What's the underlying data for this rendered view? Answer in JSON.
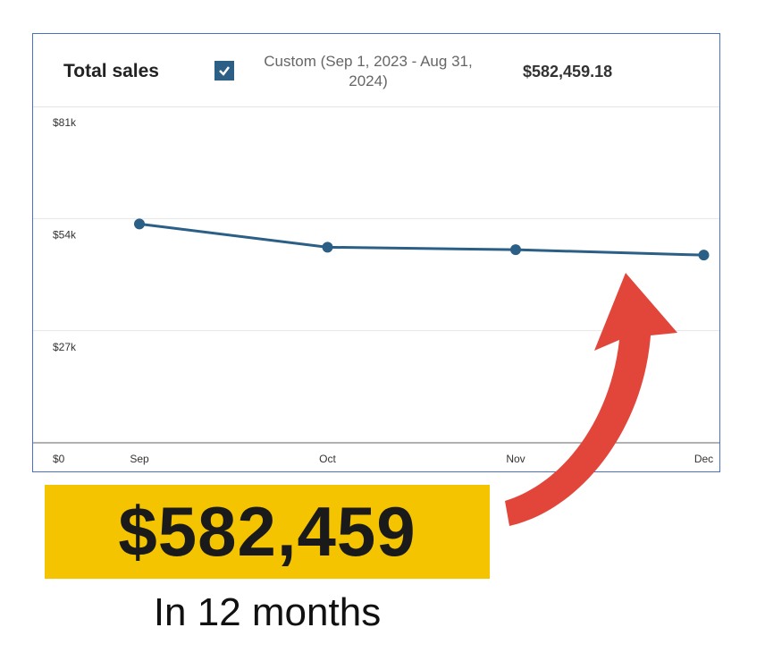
{
  "header": {
    "title": "Total sales",
    "range": "Custom (Sep 1, 2023 - Aug 31, 2024)",
    "total": "$582,459.18"
  },
  "chart_data": {
    "type": "line",
    "categories": [
      "Sep",
      "Oct",
      "Nov",
      "Dec"
    ],
    "series": [
      {
        "color": "#2b5f86",
        "values": [
          52700,
          47100,
          46500,
          45200
        ]
      }
    ],
    "ylim": [
      0,
      81000
    ],
    "yticks": [
      {
        "value": 0,
        "label": "$0"
      },
      {
        "value": 27000,
        "label": "$27k"
      },
      {
        "value": 54000,
        "label": "$54k"
      },
      {
        "value": 81000,
        "label": "$81k"
      }
    ],
    "grid": true
  },
  "callout": {
    "amount": "$582,459",
    "caption": "In 12 months"
  }
}
